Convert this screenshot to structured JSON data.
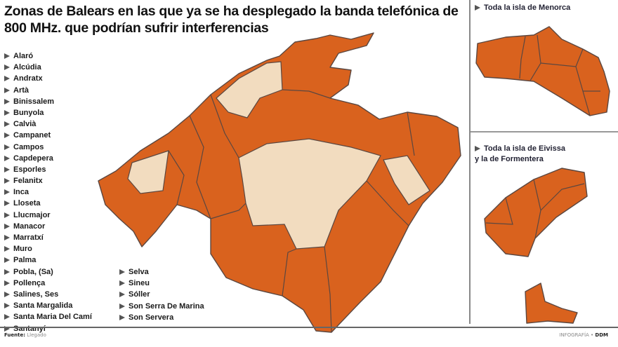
{
  "title": "Zonas de Balears en las que ya se ha desplegado la banda telefónica de 800 MHz. que podrían sufrir interferencias",
  "municipalities_col1": [
    "Alaró",
    "Alcúdia",
    "Andratx",
    "Artà",
    "Binissalem",
    "Bunyola",
    "Calvià",
    "Campanet",
    "Campos",
    "Capdepera",
    "Esporles",
    "Felanitx",
    "Inca",
    "Lloseta",
    "Llucmajor",
    "Manacor",
    "Marratxí",
    "Muro",
    "Palma",
    "Pobla, (Sa)",
    "Pollença",
    "Salines, Ses",
    "Santa Margalida",
    "Santa Maria Del Camí",
    "Santanyí"
  ],
  "municipalities_col2": [
    "Selva",
    "Sineu",
    "Sóller",
    "Son Serra De Marina",
    "Son Servera"
  ],
  "menorca_label": "Toda la isla de Menorca",
  "eivissa_label_1": "Toda la isla de Eivissa",
  "eivissa_label_2": "y la de Formentera",
  "footer": {
    "source_label": "Fuente:",
    "source": "Llegado",
    "credit_prefix": "INFOGRAFÍA •",
    "credit": "DDM"
  },
  "colors": {
    "affected": "#d9621e",
    "not_affected": "#f2dcbf",
    "border": "#5b4740"
  },
  "icons": {
    "bullet": "triangle-right-icon"
  }
}
